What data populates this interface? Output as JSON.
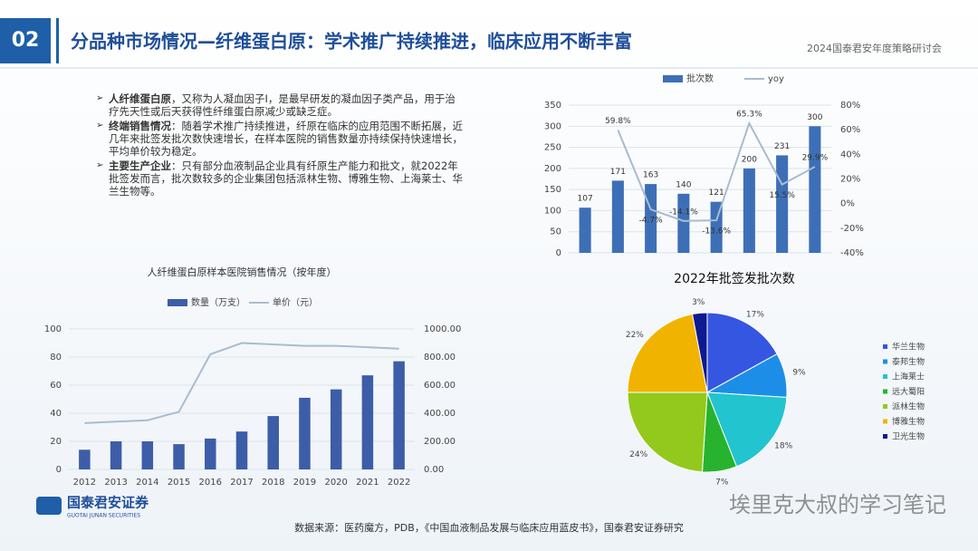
{
  "header": {
    "section": "02",
    "title": "分品种市场情况—纤维蛋白原：学术推广持续推进，临床应用不断丰富",
    "event": "2024国泰君安年度策略研讨会"
  },
  "bullets": [
    {
      "label": "人纤维蛋白原",
      "text": "，又称为人凝血因子Ⅰ，是最早研发的凝血因子类产品，用于治疗先天性或后天获得性纤维蛋白原减少或缺乏症。"
    },
    {
      "label": "终端销售情况",
      "text": "：随着学术推广持续推进，纤原在临床的应用范围不断拓展，近几年来批签发批次数快速增长，在样本医院的销售数量亦持续保持快速增长，平均单价较为稳定。"
    },
    {
      "label": "主要生产企业",
      "text": "：只有部分血液制品企业具有纤原生产能力和批文，就2022年批签发而言，批次数较多的企业集团包括派林生物、博雅生物、上海莱士、华兰生物等。"
    }
  ],
  "chart_data": [
    {
      "type": "bar",
      "categories": [
        null,
        null,
        null,
        null,
        null,
        null,
        null,
        null
      ],
      "series": [
        {
          "name": "批次数",
          "color": "#3d6fb6",
          "values": [
            107,
            171,
            163,
            140,
            121,
            200,
            231,
            300
          ]
        },
        {
          "name": "yoy",
          "type": "line",
          "axis": "y2",
          "color": "#a9bccf",
          "values": [
            null,
            59.8,
            -4.7,
            -14.1,
            -13.6,
            65.3,
            15.5,
            29.9
          ],
          "value_labels": [
            null,
            "59.8%",
            "-4.7%",
            "-14.1%",
            "-13.6%",
            "65.3%",
            "15.5%",
            "29.9%"
          ]
        }
      ],
      "ylim": [
        0,
        350
      ],
      "yticks": [
        0,
        50,
        100,
        150,
        200,
        250,
        300,
        350
      ],
      "y2lim": [
        -40,
        80
      ],
      "y2ticks": [
        {
          "value": -40,
          "label": "-40%"
        },
        {
          "value": -20,
          "label": "-20%"
        },
        {
          "value": 0,
          "label": "0%"
        },
        {
          "value": 20,
          "label": "20%"
        },
        {
          "value": 40,
          "label": "40%"
        },
        {
          "value": 60,
          "label": "60%"
        },
        {
          "value": 80,
          "label": "80%"
        }
      ],
      "bar_labels": true
    },
    {
      "type": "bar",
      "title": "人纤维蛋白原样本医院销售情况（按年度）",
      "categories": [
        "2012",
        "2013",
        "2014",
        "2015",
        "2016",
        "2017",
        "2018",
        "2019",
        "2020",
        "2021",
        "2022"
      ],
      "series": [
        {
          "name": "数量（万支）",
          "color": "#3d5da8",
          "values": [
            14,
            20,
            20,
            18,
            22,
            27,
            38,
            51,
            57,
            67,
            77
          ]
        },
        {
          "name": "单价（元）",
          "type": "line",
          "axis": "y2",
          "color": "#a9bccf",
          "values": [
            330,
            340,
            350,
            410,
            820,
            900,
            890,
            880,
            880,
            870,
            860
          ]
        }
      ],
      "ylim": [
        0,
        100
      ],
      "yticks": [
        0,
        20,
        40,
        60,
        80,
        100
      ],
      "y2lim": [
        0,
        1000
      ],
      "y2ticks": [
        {
          "value": 0,
          "label": "0.00"
        },
        {
          "value": 200,
          "label": "200.00"
        },
        {
          "value": 400,
          "label": "400.00"
        },
        {
          "value": 600,
          "label": "600.00"
        },
        {
          "value": 800,
          "label": "800.00"
        },
        {
          "value": 1000,
          "label": "1000.00"
        }
      ],
      "bar_labels": false
    },
    {
      "type": "pie",
      "title": "2022年批签发批次数",
      "categories": [
        "华兰生物",
        "泰邦生物",
        "上海莱士",
        "远大蜀阳",
        "派林生物",
        "博雅生物",
        "卫光生物"
      ],
      "values": [
        17,
        9,
        18,
        7,
        24,
        22,
        3
      ],
      "value_labels": [
        "17%",
        "9%",
        "18%",
        "7%",
        "24%",
        "22%",
        "3%"
      ],
      "colors": [
        "#3556e0",
        "#1d8ee8",
        "#21c4cf",
        "#27b32e",
        "#93c91d",
        "#f0b400",
        "#0d1a90"
      ]
    }
  ],
  "footer": {
    "logo": "国泰君安证券",
    "logo_en": "GUOTAI JUNAN SECURITIES",
    "source": "数据来源：医药魔方，PDB，《中国血液制品发展与临床应用蓝皮书》，国泰君安证券研究",
    "watermark": "埃里克大叔的学习笔记"
  }
}
